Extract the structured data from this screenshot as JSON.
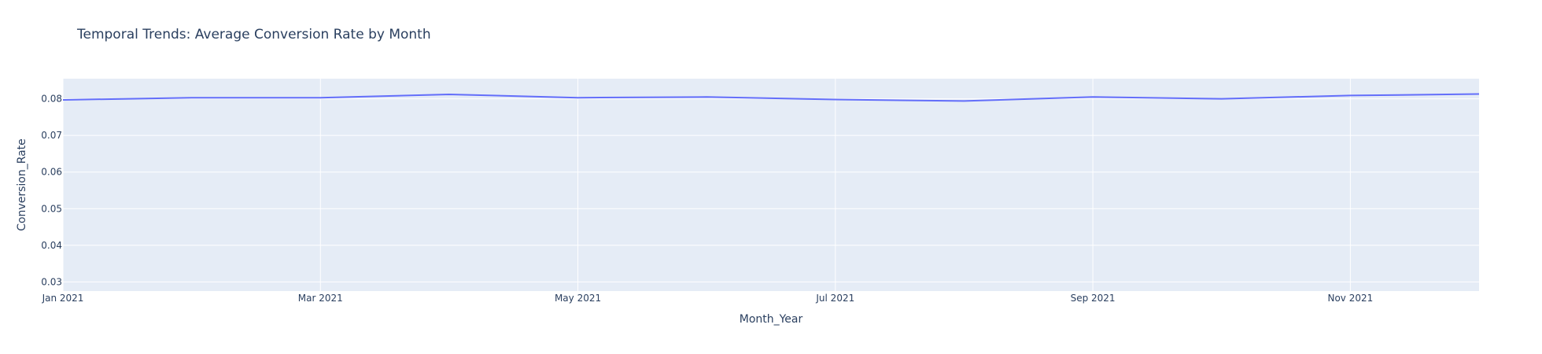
{
  "chart_data": {
    "type": "line",
    "title": "Temporal Trends: Average Conversion Rate by Month",
    "xlabel": "Month_Year",
    "ylabel": "Conversion_Rate",
    "x": [
      "2021-01",
      "2021-02",
      "2021-03",
      "2021-04",
      "2021-05",
      "2021-06",
      "2021-07",
      "2021-08",
      "2021-09",
      "2021-10",
      "2021-11",
      "2021-12"
    ],
    "series": [
      {
        "values": [
          0.0797,
          0.0803,
          0.0803,
          0.0812,
          0.0803,
          0.0805,
          0.0798,
          0.0794,
          0.0805,
          0.08,
          0.0809,
          0.0813
        ]
      }
    ],
    "x_ticks": [
      {
        "x": "2021-01",
        "label": "Jan 2021"
      },
      {
        "x": "2021-03",
        "label": "Mar 2021"
      },
      {
        "x": "2021-05",
        "label": "May 2021"
      },
      {
        "x": "2021-07",
        "label": "Jul 2021"
      },
      {
        "x": "2021-09",
        "label": "Sep 2021"
      },
      {
        "x": "2021-11",
        "label": "Nov 2021"
      }
    ],
    "y_ticks": [
      {
        "value": 0.03,
        "label": "0.03"
      },
      {
        "value": 0.04,
        "label": "0.04"
      },
      {
        "value": 0.05,
        "label": "0.05"
      },
      {
        "value": 0.06,
        "label": "0.06"
      },
      {
        "value": 0.07,
        "label": "0.07"
      },
      {
        "value": 0.08,
        "label": "0.08"
      }
    ],
    "xlim": [
      "2021-01",
      "2021-12"
    ],
    "ylim": [
      0.0275,
      0.0855
    ],
    "grid": true,
    "colors": {
      "line": "#636efa",
      "plot_bg": "#e5ecf6",
      "text": "#2a3f5f"
    }
  }
}
